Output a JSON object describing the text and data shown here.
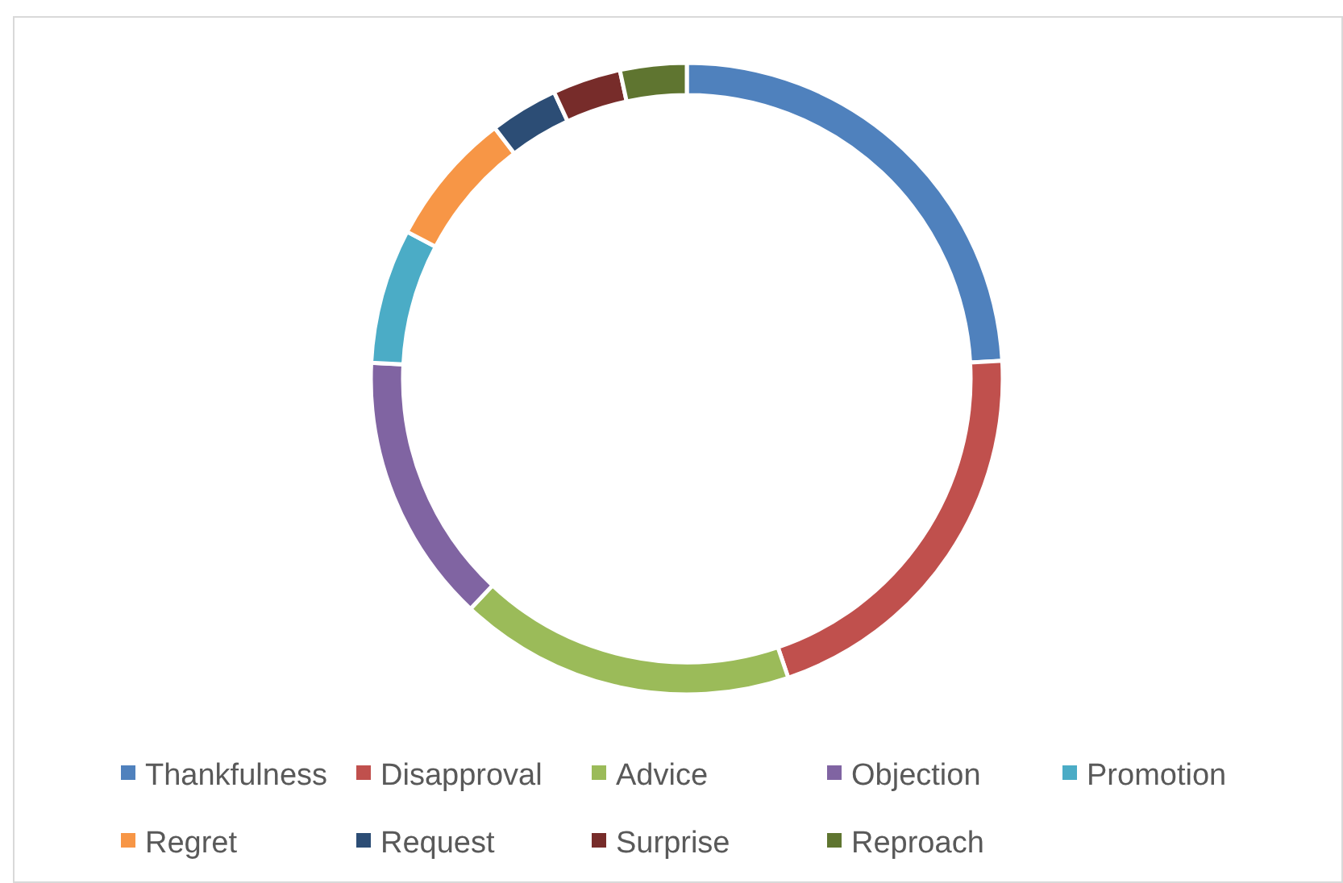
{
  "chart_data": {
    "type": "donut",
    "categories": [
      "Thankfulness",
      "Disapproval",
      "Advice",
      "Objection",
      "Promotion",
      "Regret",
      "Request",
      "Surprise",
      "Reproach"
    ],
    "values": [
      24.1,
      20.7,
      17.2,
      13.8,
      6.9,
      6.9,
      3.5,
      3.5,
      3.4
    ],
    "colors": [
      "#4f81bd",
      "#c0504d",
      "#9bbb59",
      "#8064a2",
      "#4bacc6",
      "#f79646",
      "#2c4d75",
      "#772c2a",
      "#5f7530"
    ],
    "legend": "bottom"
  }
}
